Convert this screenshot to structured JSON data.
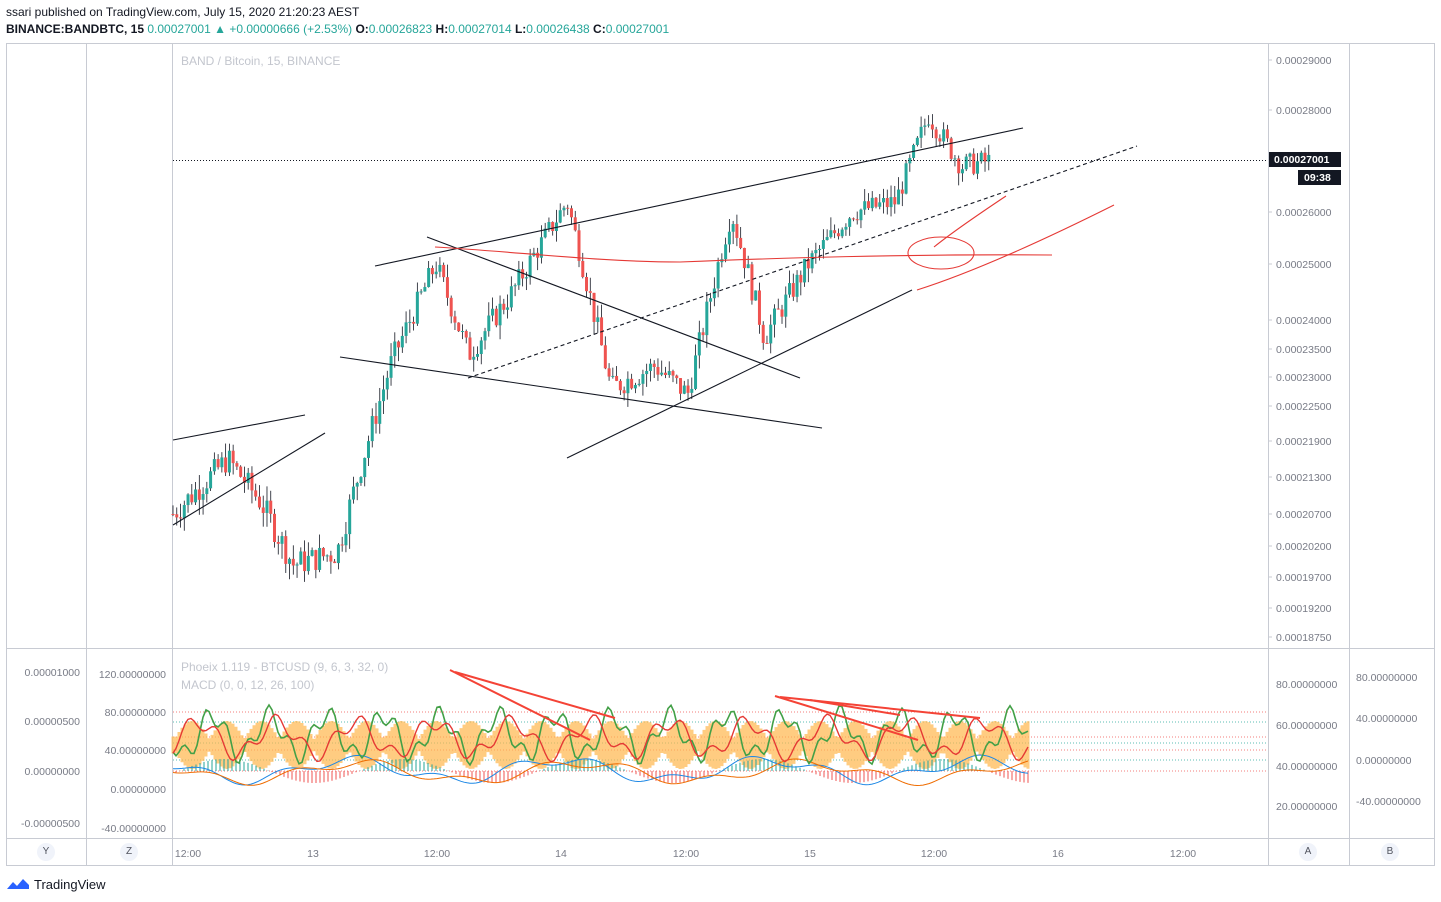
{
  "header": {
    "published_line": "ssari published on TradingView.com, July 15, 2020 21:20:23 AEST",
    "symbol": "BINANCE:BANDBTC, 15",
    "last_price": "0.00027001",
    "change": "+0.00000666 (+2.53%)",
    "open_label": "O:",
    "open": "0.00026823",
    "high_label": "H:",
    "high": "0.00027014",
    "low_label": "L:",
    "low": "0.00026438",
    "close_label": "C:",
    "close": "0.00027001"
  },
  "footer": {
    "brand": "TradingView"
  },
  "scale_buttons": {
    "y": "Y",
    "z": "Z",
    "a": "A",
    "b": "B"
  },
  "chart_data": [
    {
      "type": "candlestick",
      "watermark": "BAND / Bitcoin, 15, BINANCE",
      "price_axis_ticks": [
        "0.00029000",
        "0.00028000",
        "0.00026000",
        "0.00025000",
        "0.00024000",
        "0.00023500",
        "0.00023000",
        "0.00022500",
        "0.00021900",
        "0.00021300",
        "0.00020700",
        "0.00020200",
        "0.00019700",
        "0.00019200",
        "0.00018750"
      ],
      "time_axis_ticks": [
        "12:00",
        "13",
        "12:00",
        "14",
        "12:00",
        "15",
        "12:00",
        "16",
        "12:00"
      ],
      "last_price_label": "0.00027001",
      "countdown_label": "09:38",
      "colors": {
        "up": "#26a69a",
        "down": "#ef5350",
        "drawing_black": "#131722",
        "drawing_red": "#e53935"
      },
      "close_path": [
        {
          "x": 0.0,
          "close": 0.000207
        },
        {
          "x": 0.05,
          "close": 0.000216
        },
        {
          "x": 0.08,
          "close": 0.000209
        },
        {
          "x": 0.11,
          "close": 0.000199
        },
        {
          "x": 0.15,
          "close": 0.000201
        },
        {
          "x": 0.2,
          "close": 0.000233
        },
        {
          "x": 0.24,
          "close": 0.00025
        },
        {
          "x": 0.27,
          "close": 0.000234
        },
        {
          "x": 0.31,
          "close": 0.000245
        },
        {
          "x": 0.36,
          "close": 0.000262
        },
        {
          "x": 0.4,
          "close": 0.000228
        },
        {
          "x": 0.44,
          "close": 0.000232
        },
        {
          "x": 0.47,
          "close": 0.000227
        },
        {
          "x": 0.51,
          "close": 0.00026
        },
        {
          "x": 0.54,
          "close": 0.000237
        },
        {
          "x": 0.58,
          "close": 0.00025
        },
        {
          "x": 0.62,
          "close": 0.00026
        },
        {
          "x": 0.66,
          "close": 0.000262
        },
        {
          "x": 0.69,
          "close": 0.000279
        },
        {
          "x": 0.72,
          "close": 0.000269
        },
        {
          "x": 0.745,
          "close": 0.00027
        }
      ]
    },
    {
      "type": "line",
      "indicator_name": "Phoeix 1.119 - BTCUSD (9, 6, 3, 32, 0)",
      "indicator2_name": "MACD (0, 0, 12, 26, 100)",
      "left_axis_ticks": [
        "0.00001000",
        "0.00000500",
        "0.00000000",
        "-0.00000500"
      ],
      "inner_left_ticks": [
        "120.00000000",
        "80.00000000",
        "40.00000000",
        "0.00000000",
        "-40.00000000"
      ],
      "right_axis_ticks": [
        "80.00000000",
        "60.00000000",
        "40.00000000",
        "20.00000000"
      ],
      "far_right_ticks": [
        "80.00000000",
        "40.00000000",
        "0.00000000",
        "-40.00000000"
      ],
      "colors": {
        "fast": "#43a047",
        "slow": "#e53935",
        "band": "#ffb74d",
        "macd": "#1e88e5",
        "signal": "#ef6c00",
        "hist_up": "#26a69a",
        "hist_down": "#ef5350"
      }
    }
  ]
}
